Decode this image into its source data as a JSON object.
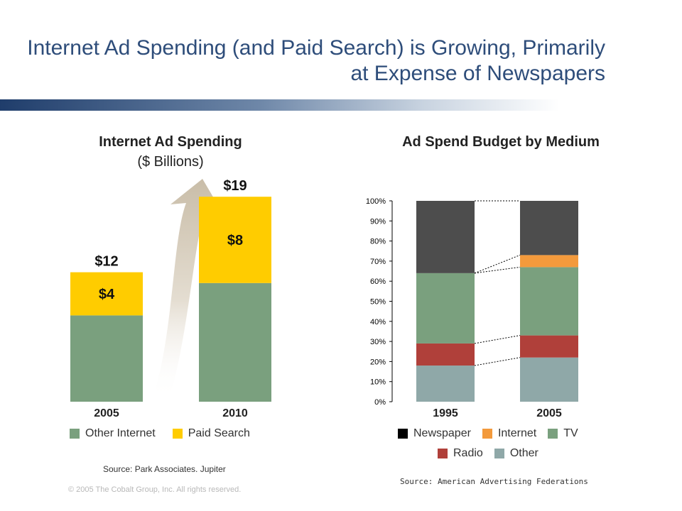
{
  "title": "Internet Ad Spending (and Paid Search) is Growing, Primarily at Expense of Newspapers",
  "copyright": "© 2005 The Cobalt Group, Inc. All rights reserved.",
  "colors": {
    "other_internet": "#7aa07e",
    "paid_search": "#ffcc00",
    "newspaper": "#4d4d4d",
    "internet": "#f39a3c",
    "tv": "#7aa07e",
    "radio": "#b0403a",
    "other": "#8fa8a8"
  },
  "chart_data": [
    {
      "type": "bar",
      "title": "Internet Ad Spending",
      "subtitle": "($ Billions)",
      "categories": [
        "2005",
        "2010"
      ],
      "series": [
        {
          "name": "Other Internet",
          "values": [
            8,
            11
          ]
        },
        {
          "name": "Paid Search",
          "values": [
            4,
            8
          ]
        }
      ],
      "segment_labels": [
        "$4",
        "$8"
      ],
      "total_labels": [
        "$12",
        "$19"
      ],
      "totals": [
        12,
        19
      ],
      "ylim": [
        0,
        19
      ],
      "legend": [
        "Other Internet",
        "Paid Search"
      ],
      "legend_position": "bottom",
      "source": "Source: Park Associates. Jupiter"
    },
    {
      "type": "bar",
      "title": "Ad Spend Budget by Medium",
      "categories": [
        "1995",
        "2005"
      ],
      "stack_order": [
        "Other",
        "Radio",
        "TV",
        "Internet",
        "Newspaper"
      ],
      "series": [
        {
          "name": "Other",
          "values": [
            18,
            22
          ]
        },
        {
          "name": "Radio",
          "values": [
            11,
            11
          ]
        },
        {
          "name": "TV",
          "values": [
            35,
            34
          ]
        },
        {
          "name": "Internet",
          "values": [
            0,
            6
          ]
        },
        {
          "name": "Newspaper",
          "values": [
            36,
            27
          ]
        }
      ],
      "ylim": [
        0,
        100
      ],
      "yticks": [
        "0%",
        "10%",
        "20%",
        "30%",
        "40%",
        "50%",
        "60%",
        "70%",
        "80%",
        "90%",
        "100%"
      ],
      "legend": [
        "Newspaper",
        "Internet",
        "TV",
        "Radio",
        "Other"
      ],
      "legend_position": "bottom",
      "source": "Source: American Advertising Federations"
    }
  ]
}
